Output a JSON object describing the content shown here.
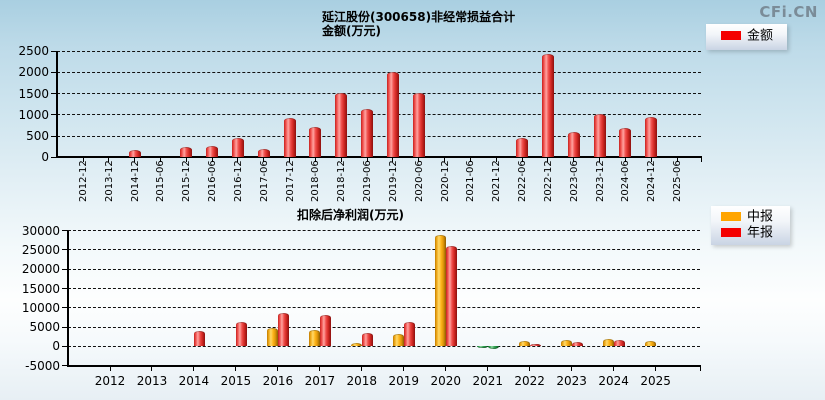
{
  "page": {
    "watermark": "CFi.CN"
  },
  "chart_data": [
    {
      "type": "bar",
      "title": "延江股份(300658)非经常损益合计",
      "subtitle": "金额(万元)",
      "ylabel": "金额(万元)",
      "ylim": [
        0,
        2500
      ],
      "yticks": [
        0,
        500,
        1000,
        1500,
        2000,
        2500
      ],
      "grid": "dashed-horizontal",
      "legend_position": "top-right",
      "categories": [
        "2012-12",
        "2013-12",
        "2014-12",
        "2015-06",
        "2015-12",
        "2016-06",
        "2016-12",
        "2017-06",
        "2017-12",
        "2018-06",
        "2018-12",
        "2019-06",
        "2019-12",
        "2020-06",
        "2020-12",
        "2021-06",
        "2021-12",
        "2022-06",
        "2022-12",
        "2023-06",
        "2023-12",
        "2024-06",
        "2024-12",
        "2025-06"
      ],
      "series": [
        {
          "name": "金额",
          "color": "#f40000",
          "values": [
            null,
            null,
            170,
            null,
            240,
            265,
            450,
            205,
            915,
            705,
            1520,
            1140,
            2000,
            1510,
            null,
            null,
            null,
            460,
            2420,
            590,
            1020,
            690,
            950,
            null
          ]
        }
      ]
    },
    {
      "type": "grouped-bar",
      "title": "扣除后净利润(万元)",
      "ylabel": "扣除后净利润(万元)",
      "ylim": [
        -5000,
        30000
      ],
      "yticks": [
        -5000,
        0,
        5000,
        10000,
        15000,
        20000,
        25000,
        30000
      ],
      "grid": "dashed-horizontal",
      "legend_position": "right",
      "negative_color": "#18a038",
      "categories": [
        "2012",
        "2013",
        "2014",
        "2015",
        "2016",
        "2017",
        "2018",
        "2019",
        "2020",
        "2021",
        "2022",
        "2023",
        "2024",
        "2025"
      ],
      "series": [
        {
          "name": "中报",
          "color": "#ffa500",
          "values": [
            null,
            null,
            null,
            null,
            4800,
            4200,
            1000,
            3200,
            29000,
            -350,
            1300,
            1550,
            2000,
            1400
          ]
        },
        {
          "name": "年报",
          "color": "#f40000",
          "values": [
            null,
            null,
            4050,
            6400,
            8600,
            8200,
            3450,
            6400,
            26000,
            -650,
            750,
            1050,
            1650,
            null
          ]
        }
      ]
    }
  ]
}
